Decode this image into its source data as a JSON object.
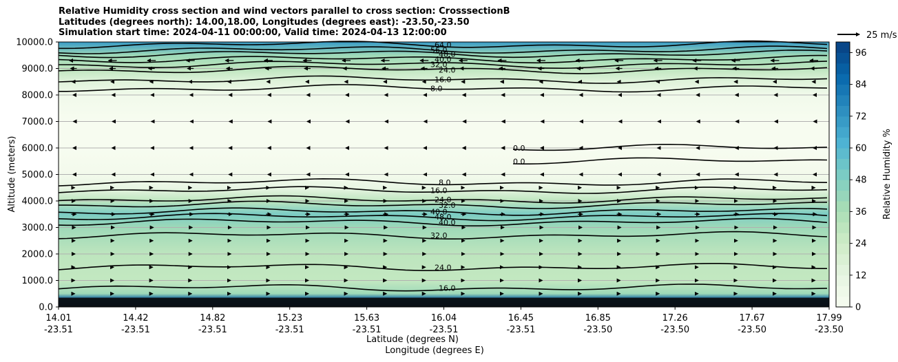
{
  "title_lines": [
    "Relative Humidity cross section and wind vectors parallel to cross section: CrosssectionB",
    "Latitudes (degrees north): 14.00,18.00, Longitudes (degrees east): -23.50,-23.50",
    "Simulation start time: 2024-04-11 00:00:00, Valid time: 2024-04-13 12:00:00"
  ],
  "chart_data": {
    "type": "heatmap",
    "title": "Relative Humidity cross section and wind vectors parallel to cross section: CrosssectionB",
    "xlabel": "Latitude (degrees N)",
    "xlabel2": "Longitude (degrees E)",
    "ylabel": "Altitude (meters)",
    "ylim": [
      0,
      10000
    ],
    "grid": "horizontal",
    "x_ticks": [
      {
        "lat": "14.01",
        "lon": "-23.51"
      },
      {
        "lat": "14.42",
        "lon": "-23.51"
      },
      {
        "lat": "14.82",
        "lon": "-23.51"
      },
      {
        "lat": "15.23",
        "lon": "-23.51"
      },
      {
        "lat": "15.63",
        "lon": "-23.51"
      },
      {
        "lat": "16.04",
        "lon": "-23.51"
      },
      {
        "lat": "16.45",
        "lon": "-23.51"
      },
      {
        "lat": "16.85",
        "lon": "-23.50"
      },
      {
        "lat": "17.26",
        "lon": "-23.50"
      },
      {
        "lat": "17.67",
        "lon": "-23.50"
      },
      {
        "lat": "17.99",
        "lon": "-23.50"
      }
    ],
    "y_ticks": [
      "0.0",
      "1000.0",
      "2000.0",
      "3000.0",
      "4000.0",
      "5000.0",
      "6000.0",
      "7000.0",
      "8000.0",
      "9000.0",
      "10000.0"
    ],
    "colorbar": {
      "label": "Relative Humidity %",
      "ticks": [
        "0",
        "12",
        "24",
        "36",
        "48",
        "60",
        "72",
        "84",
        "96"
      ],
      "min": 0,
      "max": 100
    },
    "quiver_key": "25 m/s",
    "rh_profile": [
      {
        "alt": 0,
        "rh": 100
      },
      {
        "alt": 300,
        "rh": 90
      },
      {
        "alt": 500,
        "rh": 40
      },
      {
        "alt": 1000,
        "rh": 28
      },
      {
        "alt": 2000,
        "rh": 30
      },
      {
        "alt": 3000,
        "rh": 40
      },
      {
        "alt": 3500,
        "rh": 50
      },
      {
        "alt": 4000,
        "rh": 30
      },
      {
        "alt": 4500,
        "rh": 10
      },
      {
        "alt": 5000,
        "rh": 3
      },
      {
        "alt": 6000,
        "rh": 0
      },
      {
        "alt": 7000,
        "rh": 0
      },
      {
        "alt": 8000,
        "rh": 4
      },
      {
        "alt": 8500,
        "rh": 15
      },
      {
        "alt": 9000,
        "rh": 30
      },
      {
        "alt": 9500,
        "rh": 40
      },
      {
        "alt": 10000,
        "rh": 70
      }
    ],
    "contours": [
      {
        "label": "8.0",
        "alt": 8250
      },
      {
        "label": "16.0",
        "alt": 8580
      },
      {
        "label": "24.0",
        "alt": 8950
      },
      {
        "label": "32.0",
        "alt": 9150
      },
      {
        "label": "40.0",
        "alt": 9350
      },
      {
        "label": "48.0",
        "alt": 9550
      },
      {
        "label": "56.0",
        "alt": 9700
      },
      {
        "label": "64.0",
        "alt": 9900
      },
      {
        "label": "8.0",
        "alt": 4700
      },
      {
        "label": "16.0",
        "alt": 4400
      },
      {
        "label": "24.0",
        "alt": 4050
      },
      {
        "label": "32.0",
        "alt": 3850
      },
      {
        "label": "40.0",
        "alt": 3600
      },
      {
        "label": "48.0",
        "alt": 3400
      },
      {
        "label": "40.0",
        "alt": 3200
      },
      {
        "label": "32.0",
        "alt": 2700
      },
      {
        "label": "24.0",
        "alt": 1500
      },
      {
        "label": "16.0",
        "alt": 720
      },
      {
        "label": "0.0",
        "alt": 6000
      },
      {
        "label": "0.0",
        "alt": 5500
      }
    ],
    "wind_rows": [
      {
        "alt": 9300,
        "dir": -1,
        "speed": 12
      },
      {
        "alt": 9000,
        "dir": -1,
        "speed": 9
      },
      {
        "alt": 8500,
        "dir": -1,
        "speed": 5
      },
      {
        "alt": 8000,
        "dir": -1,
        "speed": 2
      },
      {
        "alt": 7000,
        "dir": -1,
        "speed": 1
      },
      {
        "alt": 6000,
        "dir": -1,
        "speed": 2
      },
      {
        "alt": 5000,
        "dir": -1,
        "speed": 2
      },
      {
        "alt": 4500,
        "dir": 1,
        "speed": 3
      },
      {
        "alt": 4000,
        "dir": 1,
        "speed": 4
      },
      {
        "alt": 3500,
        "dir": 1,
        "speed": 7
      },
      {
        "alt": 3000,
        "dir": 1,
        "speed": 5
      },
      {
        "alt": 2500,
        "dir": 1,
        "speed": 4
      },
      {
        "alt": 2000,
        "dir": 1,
        "speed": 4
      },
      {
        "alt": 1500,
        "dir": 1,
        "speed": 3
      },
      {
        "alt": 1000,
        "dir": 1,
        "speed": 3
      },
      {
        "alt": 500,
        "dir": 1,
        "speed": 3
      }
    ]
  }
}
